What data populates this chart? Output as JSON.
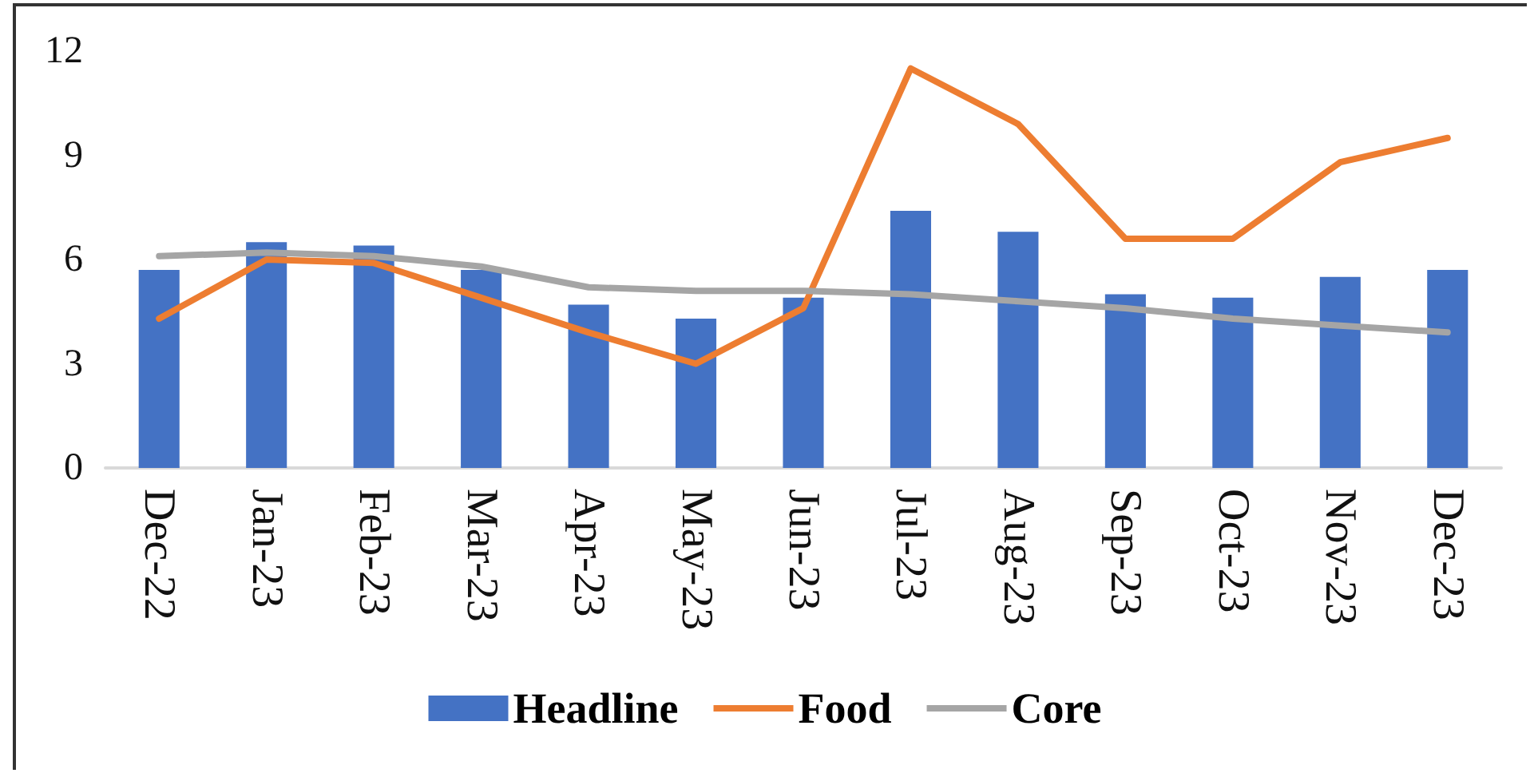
{
  "chart_data": {
    "type": "bar",
    "categories": [
      "Dec-22",
      "Jan-23",
      "Feb-23",
      "Mar-23",
      "Apr-23",
      "May-23",
      "Jun-23",
      "Jul-23",
      "Aug-23",
      "Sep-23",
      "Oct-23",
      "Nov-23",
      "Dec-23"
    ],
    "series": [
      {
        "name": "Headline",
        "color": "#4472c4",
        "values": [
          5.7,
          6.5,
          6.4,
          5.7,
          4.7,
          4.3,
          4.9,
          7.4,
          6.8,
          5.0,
          4.9,
          5.5,
          5.7
        ]
      },
      {
        "name": "Food",
        "type": "line",
        "color": "#ed7d31",
        "values": [
          4.3,
          6.0,
          5.9,
          4.9,
          3.9,
          3.0,
          4.6,
          11.5,
          9.9,
          6.6,
          6.6,
          8.8,
          9.5
        ]
      },
      {
        "name": "Core",
        "type": "line",
        "color": "#a5a5a5",
        "values": [
          6.1,
          6.2,
          6.1,
          5.8,
          5.2,
          5.1,
          5.1,
          5.0,
          4.8,
          4.6,
          4.3,
          4.1,
          3.9
        ]
      }
    ],
    "ylim": [
      0,
      12
    ],
    "yticks": [
      0,
      3,
      6,
      9,
      12
    ],
    "legend": "bottom",
    "marker": "none",
    "line_style": "solid"
  }
}
